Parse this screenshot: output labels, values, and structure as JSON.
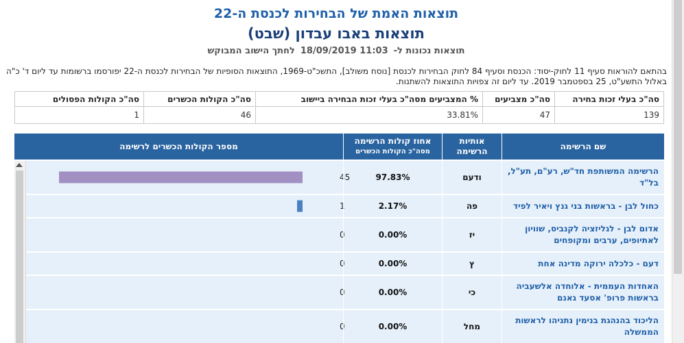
{
  "header": {
    "title": "תוצאות האמת של הבחירות לכנסת ה-22",
    "subtitle": "תוצאות באבו עבדון (שבט)",
    "updated_prefix": "תוצאות נכונות ל-",
    "updated_datetime": "11:03 18/09/2019",
    "region_link": "לחתך הישוב המבוקש"
  },
  "legal_text": "בהתאם להוראות סעיף 11 לחוק-יסוד: הכנסת וסעיף 84 לחוק הבחירות לכנסת [נוסח משולב], התשכ\"ט-1969, התוצאות הסופיות של הבחירות לכנסת ה-22 יפורסמו ברשומות עד ליום ד' כ\"ה באלול התשע\"ט, 25 בספטמבר 2019. עד ליום זה צפויות התוצאות להשתנות.",
  "summary": {
    "headers": [
      "סה\"כ בעלי זכות בחירה",
      "סה\"כ מצביעים",
      "% המצביעים מסה\"כ בעלי זכות הבחירה ביישוב",
      "סה\"כ הקולות הכשרים",
      "סה\"כ הקולות הפסולים"
    ],
    "values": [
      "139",
      "47",
      "33.81%",
      "46",
      "1"
    ]
  },
  "results_table": {
    "headers": {
      "name": "שם הרשימה",
      "letters": "אותיות הרשימה",
      "pct": "אחוז קולות הרשימה",
      "pct_sub": "מסה\"כ הקולות הכשרים",
      "votes": "מספר הקולות הכשרים לרשימה"
    },
    "rows": [
      {
        "name": "הרשימה המשותפת חד\"ש, רע\"ם, תע\"ל, בל\"ד",
        "letters": "ודעם",
        "pct": "97.83%",
        "votes": "45",
        "votes_n": 45
      },
      {
        "name": "כחול לבן - בראשות בני גנץ ויאיר לפיד",
        "letters": "פה",
        "pct": "2.17%",
        "votes": "1",
        "votes_n": 1
      },
      {
        "name": "אדום לבן - לגליזציה לקנביס, שוויון לאתיופים, ערבים ומקופחים",
        "letters": "יז",
        "pct": "0.00%",
        "votes": "0",
        "votes_n": 0
      },
      {
        "name": "דעם - כלכלה ירוקה מדינה אחת",
        "letters": "ץ",
        "pct": "0.00%",
        "votes": "0",
        "votes_n": 0
      },
      {
        "name": "האחדות העממית - אלוחדה אלשעביה בראשות פרופ' אסעד גאנם",
        "letters": "כי",
        "pct": "0.00%",
        "votes": "0",
        "votes_n": 0
      },
      {
        "name": "הליכוד בהנהגת בנימין נתניהו לראשות הממשלה",
        "letters": "מחל",
        "pct": "0.00%",
        "votes": "0",
        "votes_n": 0
      }
    ]
  },
  "colors": {
    "header_bg": "#2a64a0",
    "row_bg": "#e6f0fa",
    "bar_top": "#a390c2",
    "bar_second": "#4a7fc1",
    "title_blue": "#1f5fa8"
  }
}
